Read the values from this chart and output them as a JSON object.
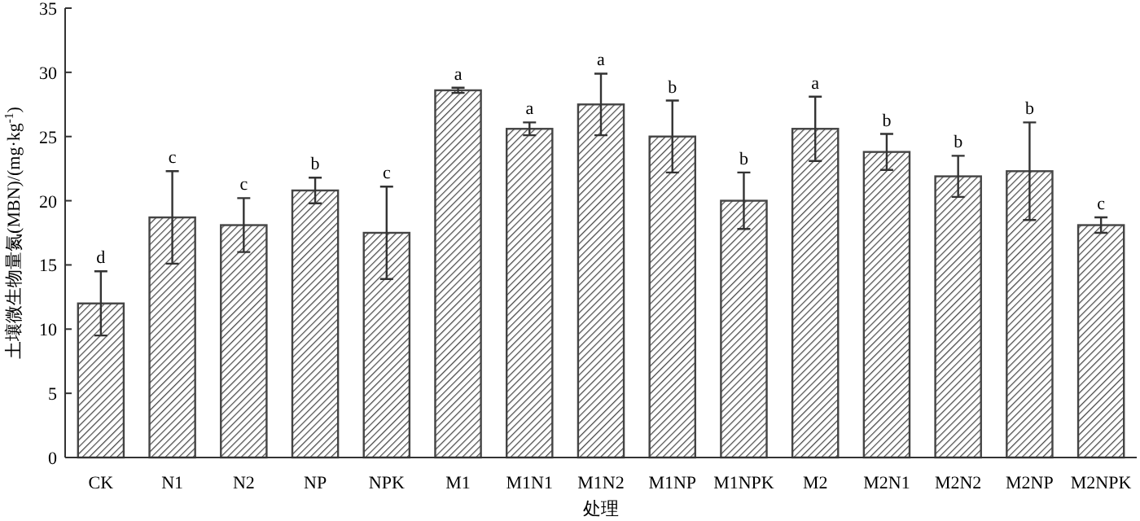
{
  "chart_data": {
    "type": "bar",
    "xlabel": "处理",
    "ylabel": "土壤微生物量氮(MBN)/(mg·kg$^{-1}$)",
    "categories": [
      "CK",
      "N1",
      "N2",
      "NP",
      "NPK",
      "M1",
      "M1N1",
      "M1N2",
      "M1NP",
      "M1NPK",
      "M2",
      "M2N1",
      "M2N2",
      "M2NP",
      "M2NPK"
    ],
    "values": [
      12.0,
      18.7,
      18.1,
      20.8,
      17.5,
      28.6,
      25.6,
      27.5,
      25.0,
      20.0,
      25.6,
      23.8,
      21.9,
      22.3,
      18.1
    ],
    "errors": [
      2.5,
      3.6,
      2.1,
      1.0,
      3.6,
      0.2,
      0.5,
      2.4,
      2.8,
      2.2,
      2.5,
      1.4,
      1.6,
      3.8,
      0.6
    ],
    "color": "#444444",
    "ylim": [
      0,
      35
    ],
    "yticks": [
      0,
      5,
      10,
      15,
      20,
      25,
      30,
      35
    ],
    "annotations": [
      {
        "text": "d",
        "x": "CK",
        "y": 14.5
      },
      {
        "text": "c",
        "x": "N1",
        "y": 22.3
      },
      {
        "text": "c",
        "x": "N2",
        "y": 20.2
      },
      {
        "text": "b",
        "x": "NP",
        "y": 21.8
      },
      {
        "text": "c",
        "x": "NPK",
        "y": 21.1
      },
      {
        "text": "a",
        "x": "M1",
        "y": 28.8
      },
      {
        "text": "a",
        "x": "M1N1",
        "y": 26.1
      },
      {
        "text": "a",
        "x": "M1N2",
        "y": 29.9
      },
      {
        "text": "b",
        "x": "M1NP",
        "y": 27.8
      },
      {
        "text": "b",
        "x": "M1NPK",
        "y": 22.2
      },
      {
        "text": "a",
        "x": "M2",
        "y": 28.1
      },
      {
        "text": "b",
        "x": "M2N1",
        "y": 25.2
      },
      {
        "text": "b",
        "x": "M2N2",
        "y": 23.5
      },
      {
        "text": "b",
        "x": "M2NP",
        "y": 26.1
      },
      {
        "text": "c",
        "x": "M2NPK",
        "y": 18.7
      }
    ]
  }
}
